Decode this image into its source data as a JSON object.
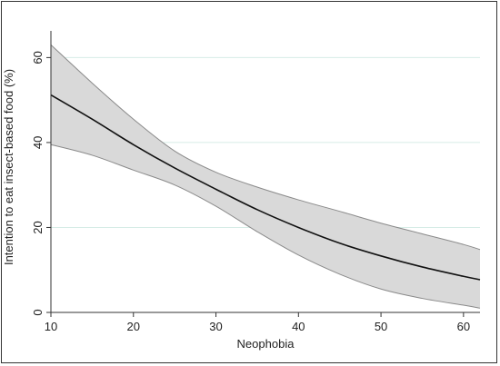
{
  "chart_data": {
    "type": "line",
    "title": "",
    "xlabel": "Neophobia",
    "ylabel": "Intention to eat insect-based food (%)",
    "xlim": [
      10,
      62
    ],
    "ylim": [
      0,
      65
    ],
    "xticks": [
      10,
      20,
      30,
      40,
      50,
      60
    ],
    "yticks": [
      0,
      20,
      40,
      60
    ],
    "grid": "horizontal",
    "colors": {
      "line": "#111111",
      "band_fill": "#d9d9d9",
      "band_edge": "#8a8a8a",
      "grid": "#d6ece6"
    },
    "series": [
      {
        "values_x": [
          10,
          15,
          20,
          25,
          30,
          35,
          40,
          45,
          50,
          55,
          60,
          62
        ],
        "values_y": [
          51.2,
          45.5,
          39.5,
          34.0,
          29.0,
          24.2,
          20.0,
          16.3,
          13.3,
          10.7,
          8.5,
          7.7
        ],
        "ci_upper": [
          63.0,
          54.0,
          45.5,
          38.0,
          33.0,
          29.5,
          26.5,
          23.8,
          21.0,
          18.5,
          16.0,
          14.8
        ],
        "ci_lower": [
          39.5,
          37.0,
          33.5,
          30.0,
          25.0,
          19.0,
          13.5,
          9.0,
          5.5,
          3.3,
          1.7,
          1.0
        ]
      }
    ]
  }
}
